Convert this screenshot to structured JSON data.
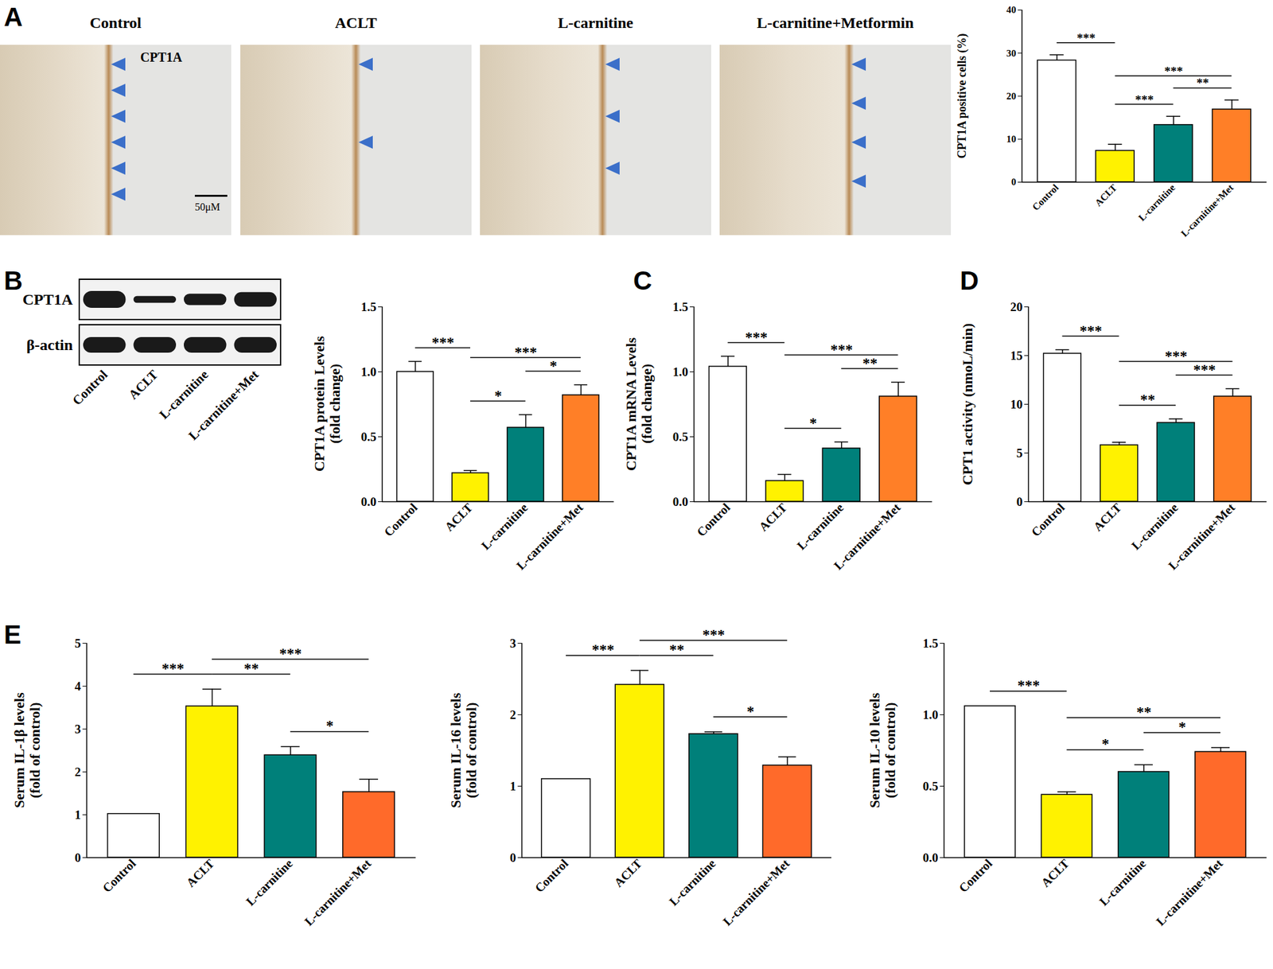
{
  "images": {
    "panel": "A",
    "labels": [
      "Control",
      "ACLT",
      "L-carnitine",
      "L-carnitine+Metformin"
    ],
    "stain_label": "CPT1A",
    "scale_bar": "50μM"
  },
  "blot": {
    "panel": "B",
    "bands": [
      "CPT1A",
      "β-actin"
    ],
    "lanes": [
      "Control",
      "ACLT",
      "L-carnitine",
      "L-carnitine+Met"
    ]
  },
  "chart_data": [
    {
      "type": "bar",
      "y_label": "CPT1A positive cells (%)",
      "categories": [
        "Control",
        "ACLT",
        "L-carnitine",
        "L-carnitine+Met"
      ],
      "values": [
        28.3,
        7.3,
        13.3,
        16.9
      ],
      "errors": [
        1.3,
        1.5,
        2.0,
        2.2
      ],
      "colors": [
        "#ffffff",
        "#fff200",
        "#00807a",
        "#ff7f27"
      ],
      "ylim": [
        0,
        40
      ],
      "yticks": [
        0,
        10,
        20,
        30,
        40
      ],
      "significance": [
        {
          "from": 0,
          "to": 1,
          "label": "***"
        },
        {
          "from": 1,
          "to": 2,
          "label": "***"
        },
        {
          "from": 1,
          "to": 3,
          "label": "***"
        },
        {
          "from": 2,
          "to": 3,
          "label": "**"
        }
      ]
    },
    {
      "type": "bar",
      "y_label": "CPT1A protein Levels\n(fold change)",
      "categories": [
        "Control",
        "ACLT",
        "L-carnitine",
        "L-carnitine+Met"
      ],
      "values": [
        1.0,
        0.22,
        0.57,
        0.82
      ],
      "errors": [
        0.08,
        0.02,
        0.1,
        0.08
      ],
      "colors": [
        "#ffffff",
        "#fff200",
        "#00807a",
        "#ff7f27"
      ],
      "ylim": [
        0,
        1.5
      ],
      "yticks": [
        {
          "value": 0,
          "label": "0.0"
        },
        {
          "value": 0.5,
          "label": "0.5"
        },
        {
          "value": 1,
          "label": "1.0"
        },
        {
          "value": 1.5,
          "label": "1.5"
        }
      ],
      "significance": [
        {
          "from": 0,
          "to": 1,
          "label": "***"
        },
        {
          "from": 1,
          "to": 2,
          "label": "*"
        },
        {
          "from": 1,
          "to": 3,
          "label": "***"
        },
        {
          "from": 2,
          "to": 3,
          "label": "*"
        }
      ]
    },
    {
      "type": "bar",
      "panel": "C",
      "y_label": "CPT1A mRNA Levels\n(fold change)",
      "categories": [
        "Control",
        "ACLT",
        "L-carnitine",
        "L-carnitine+Met"
      ],
      "values": [
        1.04,
        0.16,
        0.41,
        0.81
      ],
      "errors": [
        0.08,
        0.05,
        0.05,
        0.11
      ],
      "colors": [
        "#ffffff",
        "#fff200",
        "#00807a",
        "#ff7f27"
      ],
      "ylim": [
        0,
        1.5
      ],
      "yticks": [
        {
          "value": 0,
          "label": "0.0"
        },
        {
          "value": 0.5,
          "label": "0.5"
        },
        {
          "value": 1,
          "label": "1.0"
        },
        {
          "value": 1.5,
          "label": "1.5"
        }
      ],
      "significance": [
        {
          "from": 0,
          "to": 1,
          "label": "***"
        },
        {
          "from": 1,
          "to": 2,
          "label": "*"
        },
        {
          "from": 1,
          "to": 3,
          "label": "***"
        },
        {
          "from": 2,
          "to": 3,
          "label": "**"
        }
      ]
    },
    {
      "type": "bar",
      "panel": "D",
      "y_label": "CPT1 activity (nmoL/min)",
      "categories": [
        "Control",
        "ACLT",
        "L-carnitine",
        "L-carnitine+Met"
      ],
      "values": [
        15.2,
        5.8,
        8.1,
        10.8
      ],
      "errors": [
        0.4,
        0.3,
        0.4,
        0.8
      ],
      "colors": [
        "#ffffff",
        "#fff200",
        "#00807a",
        "#ff7f27"
      ],
      "ylim": [
        0,
        20
      ],
      "yticks": [
        0,
        5,
        10,
        15,
        20
      ],
      "significance": [
        {
          "from": 0,
          "to": 1,
          "label": "***"
        },
        {
          "from": 1,
          "to": 2,
          "label": "**"
        },
        {
          "from": 1,
          "to": 3,
          "label": "***"
        },
        {
          "from": 2,
          "to": 3,
          "label": "***"
        }
      ]
    },
    {
      "type": "bar",
      "panel": "E",
      "y_label": "Serum IL-1β levels\n(fold of control)",
      "categories": [
        "Control",
        "ACLT",
        "L-carnitine",
        "L-carnitine+Met"
      ],
      "values": [
        1.02,
        3.53,
        2.39,
        1.53
      ],
      "errors": [
        null,
        0.4,
        0.2,
        0.3
      ],
      "colors": [
        "#ffffff",
        "#fff200",
        "#00807a",
        "#ff6a2a"
      ],
      "ylim": [
        0,
        5
      ],
      "yticks": [
        0,
        1,
        2,
        3,
        4,
        5
      ],
      "significance": [
        {
          "from": 0,
          "to": 1,
          "label": "***"
        },
        {
          "from": 1,
          "to": 2,
          "label": "**"
        },
        {
          "from": 1,
          "to": 3,
          "label": "***"
        },
        {
          "from": 2,
          "to": 3,
          "label": "*"
        }
      ]
    },
    {
      "type": "bar",
      "y_label": "Serum IL-16 levels\n(fold of control)",
      "categories": [
        "Control",
        "ACLT",
        "L-carnitine",
        "L-carnitine+Met"
      ],
      "values": [
        1.1,
        2.42,
        1.73,
        1.29
      ],
      "errors": [
        null,
        0.2,
        0.03,
        0.12
      ],
      "colors": [
        "#ffffff",
        "#fff200",
        "#00807a",
        "#ff6a2a"
      ],
      "ylim": [
        0,
        3
      ],
      "yticks": [
        0,
        1,
        2,
        3
      ],
      "significance": [
        {
          "from": 0,
          "to": 1,
          "label": "***"
        },
        {
          "from": 1,
          "to": 2,
          "label": "**"
        },
        {
          "from": 1,
          "to": 3,
          "label": "***"
        },
        {
          "from": 2,
          "to": 3,
          "label": "*"
        }
      ]
    },
    {
      "type": "bar",
      "y_label": "Serum IL-10 levels\n(fold of control)",
      "categories": [
        "Control",
        "ACLT",
        "L-carnitine",
        "L-carnitine+Met"
      ],
      "values": [
        1.06,
        0.44,
        0.6,
        0.74
      ],
      "errors": [
        null,
        0.02,
        0.05,
        0.03
      ],
      "colors": [
        "#ffffff",
        "#fff200",
        "#00807a",
        "#ff6a2a"
      ],
      "ylim": [
        0,
        1.5
      ],
      "yticks": [
        {
          "value": 0,
          "label": "0.0"
        },
        {
          "value": 0.5,
          "label": "0.5"
        },
        {
          "value": 1,
          "label": "1.0"
        },
        {
          "value": 1.5,
          "label": "1.5"
        }
      ],
      "significance": [
        {
          "from": 0,
          "to": 1,
          "label": "***"
        },
        {
          "from": 1,
          "to": 2,
          "label": "*"
        },
        {
          "from": 1,
          "to": 3,
          "label": "**"
        },
        {
          "from": 2,
          "to": 3,
          "label": "*"
        }
      ]
    }
  ]
}
